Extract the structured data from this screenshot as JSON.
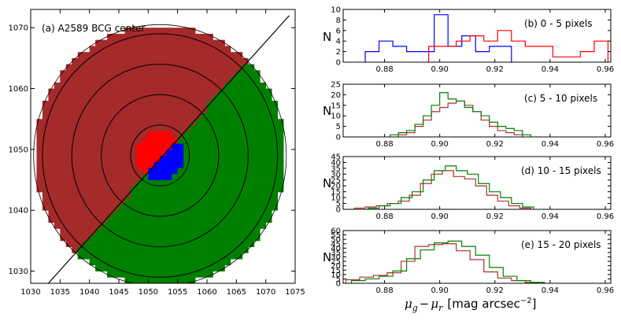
{
  "chart_data": [
    {
      "type": "map",
      "title": "(a) A2589 BCG center",
      "xlim": [
        1030,
        1075
      ],
      "ylim": [
        1028,
        1073
      ],
      "xticks": [
        1030,
        1035,
        1040,
        1045,
        1050,
        1055,
        1060,
        1065,
        1070,
        1075
      ],
      "yticks": [
        1030,
        1040,
        1050,
        1060,
        1070
      ],
      "center": [
        1052,
        1049
      ],
      "circle_radii": [
        5,
        10,
        15,
        20
      ],
      "outer_radius": 21.5,
      "divider_line": [
        [
          1033,
          1028
        ],
        [
          1074,
          1072
        ]
      ],
      "regions": [
        {
          "name": "upper-left half",
          "color": "#a52a2a"
        },
        {
          "name": "lower-right half",
          "color": "#008000"
        },
        {
          "name": "center upper-left",
          "color": "#ff0000"
        },
        {
          "name": "center lower-right",
          "color": "#0000ff"
        }
      ]
    },
    {
      "type": "histogram",
      "label": "(b) 0 - 5 pixels",
      "ylabel": "N",
      "xlim": [
        0.865,
        0.962
      ],
      "ylim": [
        0,
        10
      ],
      "xticks": [
        0.88,
        0.9,
        0.92,
        0.94,
        0.96
      ],
      "yticks": [
        0,
        2,
        4,
        6,
        8,
        10
      ],
      "series": [
        {
          "name": "blue",
          "color": "#0000ff",
          "edges": [
            0.873,
            0.878,
            0.883,
            0.888,
            0.893,
            0.898,
            0.903,
            0.908,
            0.913,
            0.918,
            0.923,
            0.926
          ],
          "counts": [
            2,
            4,
            3,
            2,
            2,
            9,
            3,
            5,
            2,
            3,
            3
          ]
        },
        {
          "name": "red",
          "color": "#ff0000",
          "edges": [
            0.896,
            0.901,
            0.906,
            0.911,
            0.916,
            0.921,
            0.926,
            0.931,
            0.936,
            0.941,
            0.946,
            0.951,
            0.956,
            0.961
          ],
          "counts": [
            3,
            3,
            4,
            5,
            4,
            6,
            4,
            3,
            3,
            1,
            1,
            2,
            4
          ]
        }
      ]
    },
    {
      "type": "histogram",
      "label": "(c) 5 - 10 pixels",
      "ylabel": "N",
      "xlim": [
        0.865,
        0.962
      ],
      "ylim": [
        0,
        25
      ],
      "xticks": [
        0.88,
        0.9,
        0.92,
        0.94,
        0.96
      ],
      "yticks": [
        0,
        5,
        10,
        15,
        20,
        25
      ],
      "series": [
        {
          "name": "brown",
          "color": "#b03030",
          "edges": [
            0.885,
            0.888,
            0.891,
            0.894,
            0.897,
            0.9,
            0.903,
            0.906,
            0.909,
            0.912,
            0.915,
            0.918,
            0.921,
            0.924,
            0.927,
            0.93
          ],
          "counts": [
            1,
            2,
            5,
            8,
            12,
            14,
            16,
            17,
            15,
            12,
            8,
            5,
            3,
            2,
            1
          ]
        },
        {
          "name": "green",
          "color": "#008000",
          "edges": [
            0.882,
            0.885,
            0.888,
            0.891,
            0.894,
            0.897,
            0.9,
            0.903,
            0.906,
            0.909,
            0.912,
            0.915,
            0.918,
            0.921,
            0.924,
            0.927,
            0.93,
            0.933
          ],
          "counts": [
            1,
            2,
            3,
            6,
            10,
            15,
            21,
            18,
            17,
            14,
            12,
            10,
            7,
            5,
            4,
            3,
            1
          ]
        }
      ]
    },
    {
      "type": "histogram",
      "label": "(d) 10 - 15 pixels",
      "ylabel": "N",
      "xlim": [
        0.865,
        0.962
      ],
      "ylim": [
        0,
        45
      ],
      "xticks": [
        0.88,
        0.9,
        0.92,
        0.94,
        0.96
      ],
      "yticks": [
        0,
        5,
        10,
        15,
        20,
        25,
        30,
        35,
        40,
        45
      ],
      "series": [
        {
          "name": "brown",
          "color": "#b03030",
          "edges": [
            0.869,
            0.873,
            0.877,
            0.881,
            0.885,
            0.889,
            0.893,
            0.897,
            0.901,
            0.905,
            0.909,
            0.913,
            0.917,
            0.921,
            0.925,
            0.929,
            0.933
          ],
          "counts": [
            1,
            2,
            3,
            5,
            7,
            12,
            22,
            30,
            33,
            28,
            26,
            20,
            12,
            7,
            3,
            1
          ]
        },
        {
          "name": "green",
          "color": "#008000",
          "edges": [
            0.874,
            0.878,
            0.882,
            0.886,
            0.89,
            0.894,
            0.898,
            0.902,
            0.906,
            0.91,
            0.914,
            0.918,
            0.922,
            0.926,
            0.93,
            0.934
          ],
          "counts": [
            1,
            3,
            5,
            10,
            15,
            25,
            33,
            37,
            33,
            30,
            22,
            15,
            10,
            5,
            2
          ]
        }
      ]
    },
    {
      "type": "histogram",
      "label": "(e) 15 - 20 pixels",
      "ylabel": "N",
      "xlim": [
        0.865,
        0.962
      ],
      "ylim": [
        0,
        60
      ],
      "xticks": [
        0.88,
        0.9,
        0.92,
        0.94,
        0.96
      ],
      "yticks": [
        0,
        5,
        10,
        15,
        20,
        25,
        30,
        35,
        40,
        45,
        50,
        55,
        60
      ],
      "xlabel_lhs": "μ",
      "xlabel_g": "g",
      "xlabel_minus": "−",
      "xlabel_r": "r",
      "xlabel_unit": "[mag arcsec",
      "xlabel_exp": "−2",
      "xlabel_close": "]",
      "series": [
        {
          "name": "brown",
          "color": "#b03030",
          "edges": [
            0.866,
            0.871,
            0.876,
            0.881,
            0.886,
            0.891,
            0.896,
            0.901,
            0.906,
            0.911,
            0.916,
            0.921,
            0.926,
            0.931,
            0.936
          ],
          "counts": [
            4,
            7,
            9,
            12,
            25,
            42,
            44,
            45,
            37,
            27,
            13,
            6,
            3,
            1
          ]
        },
        {
          "name": "green",
          "color": "#008000",
          "edges": [
            0.868,
            0.873,
            0.878,
            0.883,
            0.888,
            0.893,
            0.898,
            0.903,
            0.908,
            0.913,
            0.918,
            0.923,
            0.928,
            0.933,
            0.938
          ],
          "counts": [
            3,
            5,
            8,
            14,
            28,
            38,
            46,
            48,
            42,
            32,
            18,
            8,
            3,
            1
          ]
        }
      ]
    }
  ]
}
